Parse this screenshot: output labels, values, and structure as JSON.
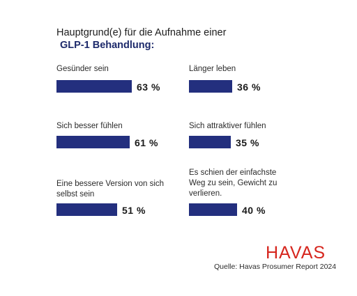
{
  "chart_data": {
    "type": "bar",
    "title": "Hauptgrund(e) für die Aufnahme einer",
    "subtitle": "GLP-1 Behandlung:",
    "unit": "%",
    "categories": [
      "Gesünder sein",
      "Länger leben",
      "Sich besser fühlen",
      "Sich attraktiver fühlen",
      "Eine bessere Version von sich selbst sein",
      "Es schien der einfachste Weg zu sein, Gewicht zu verlieren."
    ],
    "values": [
      63,
      36,
      61,
      35,
      51,
      40
    ],
    "labels": [
      "63 %",
      "36 %",
      "61 %",
      "35 %",
      "51 %",
      "40 %"
    ],
    "bar_color": "#232f7e"
  },
  "brand": {
    "logo_text": "HAVAS",
    "logo_color": "#d6261e",
    "source": "Quelle: Havas Prosumer Report 2024"
  }
}
